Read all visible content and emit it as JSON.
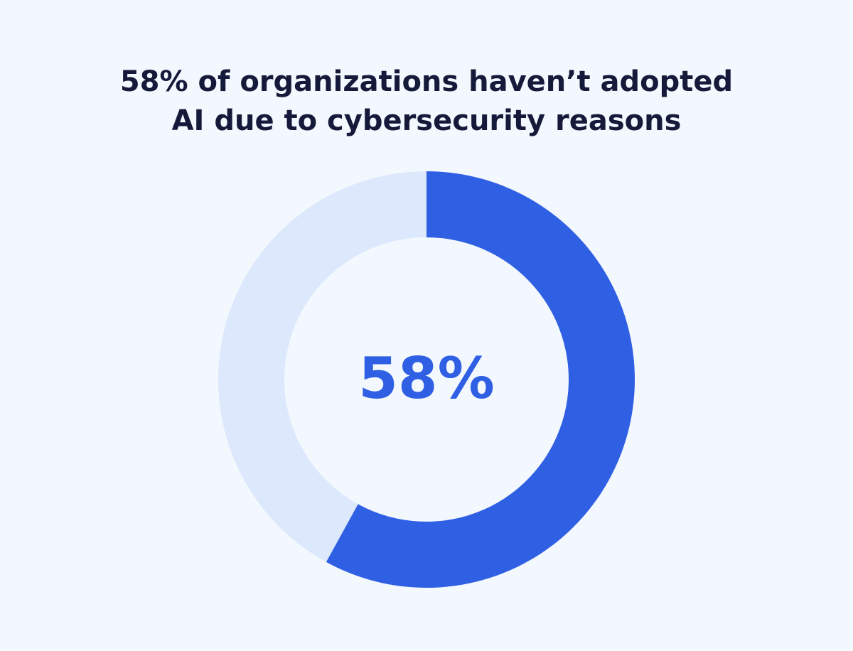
{
  "chart_data": {
    "type": "donut",
    "title": [
      "58% of organizations haven’t adopted",
      "AI due to cybersecurity reasons"
    ],
    "values": [
      58,
      42
    ],
    "value_labels": [
      "58%",
      null
    ],
    "colors": [
      "#2f5fe3",
      "#dce8fc"
    ]
  }
}
